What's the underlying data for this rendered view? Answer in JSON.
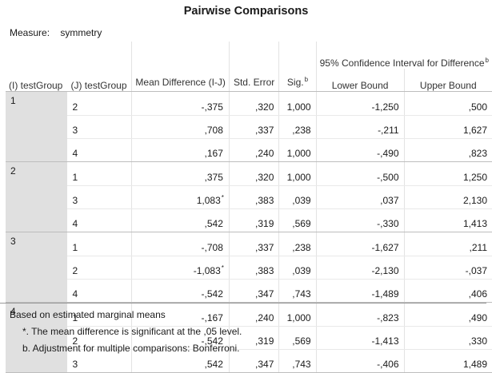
{
  "title": "Pairwise Comparisons",
  "measure": {
    "label": "Measure:",
    "value": "symmetry"
  },
  "headers": {
    "i_group": "(I) testGroup",
    "j_group": "(J) testGroup",
    "mean_diff": "Mean Difference (I-J)",
    "std_error": "Std. Error",
    "sig": "Sig.",
    "sig_sup": "b",
    "ci": "95% Confidence Interval for Difference",
    "ci_sup": "b",
    "lower": "Lower Bound",
    "upper": "Upper Bound"
  },
  "rows": [
    {
      "i": "1",
      "j": "2",
      "md": "-,375",
      "md_sup": "",
      "se": ",320",
      "sig": "1,000",
      "lo": "-1,250",
      "hi": ",500"
    },
    {
      "i": "",
      "j": "3",
      "md": ",708",
      "md_sup": "",
      "se": ",337",
      "sig": ",238",
      "lo": "-,211",
      "hi": "1,627"
    },
    {
      "i": "",
      "j": "4",
      "md": ",167",
      "md_sup": "",
      "se": ",240",
      "sig": "1,000",
      "lo": "-,490",
      "hi": ",823"
    },
    {
      "i": "2",
      "j": "1",
      "md": ",375",
      "md_sup": "",
      "se": ",320",
      "sig": "1,000",
      "lo": "-,500",
      "hi": "1,250"
    },
    {
      "i": "",
      "j": "3",
      "md": "1,083",
      "md_sup": "*",
      "se": ",383",
      "sig": ",039",
      "lo": ",037",
      "hi": "2,130"
    },
    {
      "i": "",
      "j": "4",
      "md": ",542",
      "md_sup": "",
      "se": ",319",
      "sig": ",569",
      "lo": "-,330",
      "hi": "1,413"
    },
    {
      "i": "3",
      "j": "1",
      "md": "-,708",
      "md_sup": "",
      "se": ",337",
      "sig": ",238",
      "lo": "-1,627",
      "hi": ",211"
    },
    {
      "i": "",
      "j": "2",
      "md": "-1,083",
      "md_sup": "*",
      "se": ",383",
      "sig": ",039",
      "lo": "-2,130",
      "hi": "-,037"
    },
    {
      "i": "",
      "j": "4",
      "md": "-,542",
      "md_sup": "",
      "se": ",347",
      "sig": ",743",
      "lo": "-1,489",
      "hi": ",406"
    },
    {
      "i": "4",
      "j": "1",
      "md": "-,167",
      "md_sup": "",
      "se": ",240",
      "sig": "1,000",
      "lo": "-,823",
      "hi": ",490"
    },
    {
      "i": "",
      "j": "2",
      "md": "-,542",
      "md_sup": "",
      "se": ",319",
      "sig": ",569",
      "lo": "-1,413",
      "hi": ",330"
    },
    {
      "i": "",
      "j": "3",
      "md": ",542",
      "md_sup": "",
      "se": ",347",
      "sig": ",743",
      "lo": "-,406",
      "hi": "1,489"
    }
  ],
  "footnotes": {
    "based_on": "Based on estimated marginal means",
    "star": "*. The mean difference is significant at the ,05 level.",
    "b": "b. Adjustment for multiple comparisons: Bonferroni."
  }
}
